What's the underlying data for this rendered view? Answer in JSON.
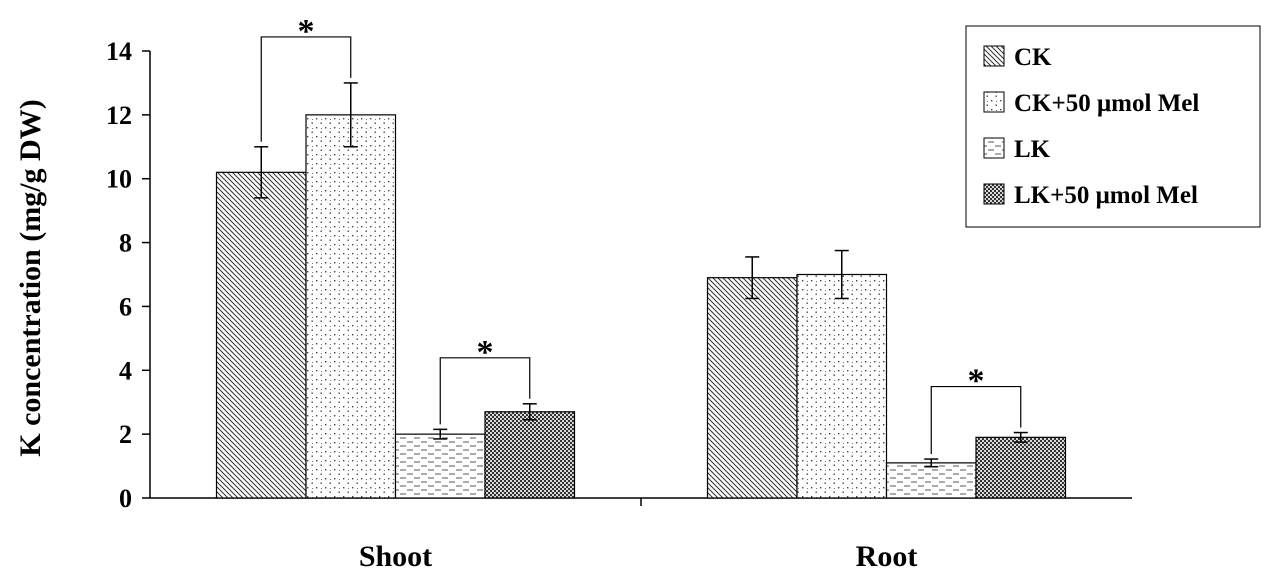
{
  "chart_data": {
    "type": "bar",
    "ylabel": "K concentration (mg/g DW)",
    "xlabel": "",
    "categories": [
      "Shoot",
      "Root"
    ],
    "ylim": [
      0,
      14
    ],
    "yticks": [
      0,
      2,
      4,
      6,
      8,
      10,
      12,
      14
    ],
    "legend_position": "top-right",
    "grid": false,
    "series": [
      {
        "name": "CK",
        "values": [
          10.2,
          6.9
        ],
        "errors": [
          0.8,
          0.65
        ],
        "pattern": "diag-dense"
      },
      {
        "name": "CK+50 μmol Mel",
        "values": [
          12.0,
          7.0
        ],
        "errors": [
          1.0,
          0.75
        ],
        "pattern": "dots-sparse"
      },
      {
        "name": "LK",
        "values": [
          2.0,
          1.1
        ],
        "errors": [
          0.15,
          0.12
        ],
        "pattern": "dashes"
      },
      {
        "name": "LK+50 μmol Mel",
        "values": [
          2.7,
          1.9
        ],
        "errors": [
          0.25,
          0.15
        ],
        "pattern": "checker"
      }
    ],
    "significance": [
      {
        "category": "Shoot",
        "pair": [
          "CK",
          "CK+50 μmol Mel"
        ],
        "label": "*"
      },
      {
        "category": "Shoot",
        "pair": [
          "LK",
          "LK+50 μmol Mel"
        ],
        "label": "*"
      },
      {
        "category": "Root",
        "pair": [
          "LK",
          "LK+50 μmol Mel"
        ],
        "label": "*"
      }
    ]
  }
}
